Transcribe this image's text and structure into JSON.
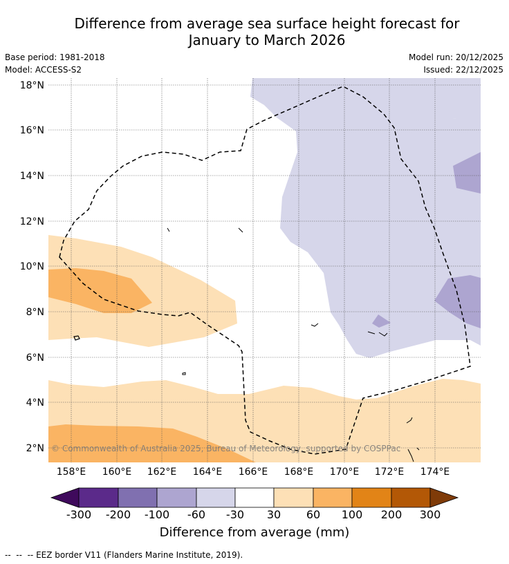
{
  "title": {
    "line1": "Difference from average sea surface height forecast for",
    "line2": "January to March 2026"
  },
  "meta": {
    "base_period": "Base period: 1981-2018",
    "model": "Model: ACCESS-S2",
    "model_run": "Model run: 20/12/2025",
    "issued": "Issued: 22/12/2025"
  },
  "map": {
    "lat_labels": [
      "18°N",
      "16°N",
      "14°N",
      "12°N",
      "10°N",
      "8°N",
      "6°N",
      "4°N",
      "2°N"
    ],
    "lon_labels": [
      "158°E",
      "160°E",
      "162°E",
      "164°E",
      "166°E",
      "168°E",
      "170°E",
      "172°E",
      "174°E"
    ],
    "copyright": "© Commonwealth of Australia 2025, Bureau of Meteorology, supported by COSPPac"
  },
  "colorbar": {
    "ticks": [
      "-300",
      "-200",
      "-100",
      "-60",
      "-30",
      "30",
      "60",
      "100",
      "200",
      "300"
    ],
    "colors": [
      "#3f0a5c",
      "#5b2a8a",
      "#8070b0",
      "#ada5d0",
      "#d6d6ea",
      "#ffffff",
      "#fde0b6",
      "#fab463",
      "#e28417",
      "#b35806",
      "#7f3b08"
    ],
    "label": "Difference from average (mm)"
  },
  "footer": {
    "text": "EEZ border V11 (Flanders Marine Institute, 2019)."
  }
}
